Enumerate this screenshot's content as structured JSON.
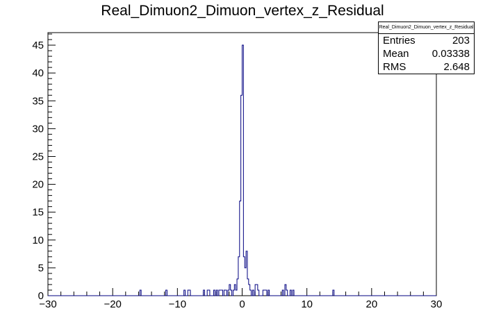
{
  "chart_data": {
    "type": "histogram",
    "title": "Real_Dimuon2_Dimuon_vertex_z_Residual",
    "xlabel": "",
    "ylabel": "",
    "xlim": [
      -30,
      30
    ],
    "ylim": [
      0,
      47.25
    ],
    "bins": 300,
    "bin_width": 0.2,
    "xticks": [
      -30,
      -20,
      -10,
      0,
      10,
      20,
      30
    ],
    "xtick_labels": [
      "−30",
      "−20",
      "−10",
      "0",
      "10",
      "20",
      "30"
    ],
    "yticks": [
      0,
      5,
      10,
      15,
      20,
      25,
      30,
      35,
      40,
      45
    ],
    "ytick_labels": [
      "0",
      "5",
      "10",
      "15",
      "20",
      "25",
      "30",
      "35",
      "40",
      "45"
    ],
    "line_color": "#000080",
    "grid": false,
    "legend": "none",
    "stats": {
      "title": "Real_Dimuon2_Dimuon_vertex_z_Residual",
      "placement": "top-right",
      "entries_label": "Entries",
      "entries": "203",
      "mean_label": "Mean",
      "mean": "0.03338",
      "rms_label": "RMS",
      "rms": "2.648"
    },
    "points": [
      {
        "x": -15.7,
        "y": 1
      },
      {
        "x": -11.7,
        "y": 1
      },
      {
        "x": -8.9,
        "y": 1
      },
      {
        "x": -8.3,
        "y": 1
      },
      {
        "x": -8.1,
        "y": 1
      },
      {
        "x": -5.9,
        "y": 1
      },
      {
        "x": -5.3,
        "y": 1
      },
      {
        "x": -5.1,
        "y": 1
      },
      {
        "x": -4.3,
        "y": 1
      },
      {
        "x": -3.9,
        "y": 1
      },
      {
        "x": -3.5,
        "y": 1
      },
      {
        "x": -3.3,
        "y": 1
      },
      {
        "x": -3.1,
        "y": 1
      },
      {
        "x": -2.7,
        "y": 1
      },
      {
        "x": -2.5,
        "y": 1
      },
      {
        "x": -2.1,
        "y": 1
      },
      {
        "x": -1.9,
        "y": 2
      },
      {
        "x": -1.7,
        "y": 1
      },
      {
        "x": -1.3,
        "y": 1
      },
      {
        "x": -1.1,
        "y": 2
      },
      {
        "x": -0.9,
        "y": 1
      },
      {
        "x": -0.7,
        "y": 3
      },
      {
        "x": -0.5,
        "y": 7
      },
      {
        "x": -0.3,
        "y": 17
      },
      {
        "x": -0.1,
        "y": 36
      },
      {
        "x": 0.1,
        "y": 45
      },
      {
        "x": 0.3,
        "y": 7
      },
      {
        "x": 0.5,
        "y": 5
      },
      {
        "x": 0.7,
        "y": 8
      },
      {
        "x": 0.9,
        "y": 3
      },
      {
        "x": 1.1,
        "y": 2
      },
      {
        "x": 1.3,
        "y": 1
      },
      {
        "x": 1.7,
        "y": 1
      },
      {
        "x": 2.1,
        "y": 2
      },
      {
        "x": 2.3,
        "y": 2
      },
      {
        "x": 2.5,
        "y": 1
      },
      {
        "x": 3.3,
        "y": 1
      },
      {
        "x": 3.5,
        "y": 1
      },
      {
        "x": 3.7,
        "y": 1
      },
      {
        "x": 4.1,
        "y": 1
      },
      {
        "x": 6.3,
        "y": 1
      },
      {
        "x": 6.7,
        "y": 2
      },
      {
        "x": 6.9,
        "y": 1
      },
      {
        "x": 7.5,
        "y": 1
      },
      {
        "x": 7.9,
        "y": 1
      },
      {
        "x": 14.1,
        "y": 1
      }
    ]
  }
}
